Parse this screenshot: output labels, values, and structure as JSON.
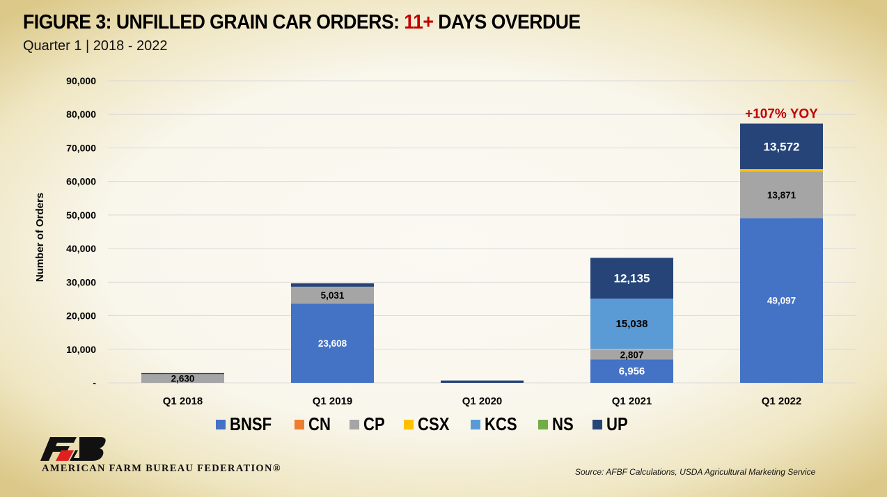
{
  "header": {
    "title_part1": "FIGURE 3: UNFILLED GRAIN CAR ORDERS: ",
    "title_highlight": "11+",
    "title_part2": " DAYS OVERDUE",
    "subtitle": "Quarter 1 | 2018 - 2022"
  },
  "chart_data": {
    "type": "bar",
    "stacked": true,
    "title": "FIGURE 3: UNFILLED GRAIN CAR ORDERS: 11+ DAYS OVERDUE",
    "subtitle": "Quarter 1 | 2018 - 2022",
    "xlabel": "",
    "ylabel": "Number of Orders",
    "ylim": [
      0,
      90000
    ],
    "yticks": [
      0,
      10000,
      20000,
      30000,
      40000,
      50000,
      60000,
      70000,
      80000,
      90000
    ],
    "ytick_labels": [
      "-",
      "10,000",
      "20,000",
      "30,000",
      "40,000",
      "50,000",
      "60,000",
      "70,000",
      "80,000",
      "90,000"
    ],
    "grid": true,
    "legend_position": "bottom",
    "categories": [
      "Q1 2018",
      "Q1 2019",
      "Q1 2020",
      "Q1 2021",
      "Q1 2022"
    ],
    "series": [
      {
        "name": "BNSF",
        "color": "#4472c4",
        "values": [
          0,
          23608,
          0,
          6956,
          49097
        ],
        "labels": [
          null,
          "23,608",
          null,
          "6,956",
          "49,097"
        ],
        "label_color": "#ffffff"
      },
      {
        "name": "CN",
        "color": "#ed7d31",
        "values": [
          0,
          0,
          0,
          0,
          0
        ],
        "labels": [
          null,
          null,
          null,
          null,
          null
        ],
        "label_color": "#000000"
      },
      {
        "name": "CP",
        "color": "#a5a5a5",
        "values": [
          2630,
          5031,
          0,
          2807,
          13871
        ],
        "labels": [
          "2,630",
          "5,031",
          null,
          "2,807",
          "13,871"
        ],
        "label_color": "#000000"
      },
      {
        "name": "CSX",
        "color": "#ffc000",
        "values": [
          0,
          0,
          0,
          300,
          700
        ],
        "labels": [
          null,
          null,
          null,
          null,
          null
        ],
        "label_color": "#000000"
      },
      {
        "name": "KCS",
        "color": "#5b9bd5",
        "values": [
          0,
          0,
          0,
          15038,
          0
        ],
        "labels": [
          null,
          null,
          null,
          "15,038",
          null
        ],
        "label_color": "#000000"
      },
      {
        "name": "NS",
        "color": "#70ad47",
        "values": [
          0,
          0,
          0,
          0,
          0
        ],
        "labels": [
          null,
          null,
          null,
          null,
          null
        ],
        "label_color": "#000000"
      },
      {
        "name": "UP",
        "color": "#264478",
        "values": [
          300,
          1000,
          700,
          12135,
          13572
        ],
        "labels": [
          null,
          null,
          null,
          "12,135",
          "13,572"
        ],
        "label_color": "#ffffff"
      }
    ],
    "annotations": [
      {
        "category": "Q1 2022",
        "text": "+107% YOY",
        "color": "#c00000"
      }
    ]
  },
  "footer": {
    "org_name": "AMERICAN FARM BUREAU FEDERATION®",
    "logo_text": "FB",
    "source": "Source: AFBF Calculations, USDA Agricultural Marketing Service"
  }
}
